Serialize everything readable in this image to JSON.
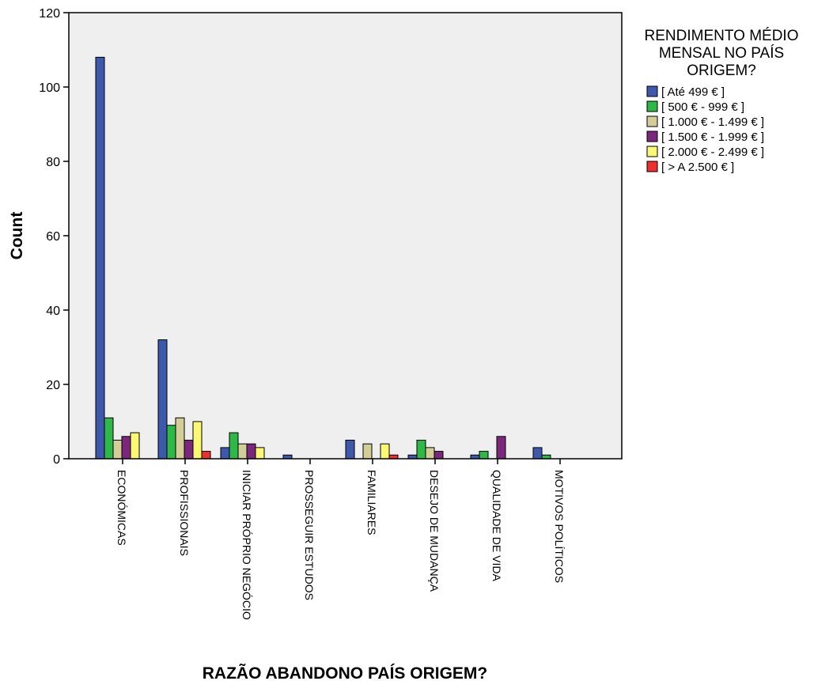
{
  "chart_data": {
    "type": "bar",
    "xlabel": "RAZÃO ABANDONO PAÍS ORIGEM?",
    "ylabel": "Count",
    "ylim": [
      0,
      120
    ],
    "yticks": [
      0,
      20,
      40,
      60,
      80,
      100,
      120
    ],
    "grid": false,
    "legend_placement": "right",
    "legend_title": "RENDIMENTO MÉDIO MENSAL NO PAÍS ORIGEM?",
    "legend_title_lines": [
      "RENDIMENTO MÉDIO",
      "MENSAL NO PAÍS",
      "ORIGEM?"
    ],
    "plot_background": "#efefef",
    "categories": [
      "ECONÓMICAS",
      "PROFISSIONAIS",
      "INICIAR PRÓPRIO NEGÓCIO",
      "PROSSEGUIR ESTUDOS",
      "FAMILIARES",
      "DESEJO DE MUDANÇA",
      "QUALIDADE DE VIDA",
      "MOTIVOS POLÍTICOS"
    ],
    "series": [
      {
        "name": "[ Até 499 € ]",
        "color": "#3e58ac",
        "values": [
          108,
          32,
          3,
          1,
          5,
          1,
          1,
          3
        ]
      },
      {
        "name": "[ 500 €  - 999 € ]",
        "color": "#2eb848",
        "values": [
          11,
          9,
          7,
          0,
          0,
          5,
          2,
          1
        ]
      },
      {
        "name": "[ 1.000 €  - 1.499 € ]",
        "color": "#d3ce97",
        "values": [
          5,
          11,
          4,
          0,
          4,
          3,
          0,
          0
        ]
      },
      {
        "name": "[ 1.500 €  - 1.999 € ]",
        "color": "#7b277b",
        "values": [
          6,
          5,
          4,
          0,
          0,
          2,
          6,
          0
        ]
      },
      {
        "name": "[ 2.000 €  -  2.499 € ]",
        "color": "#fbf873",
        "values": [
          7,
          10,
          3,
          0,
          4,
          0,
          0,
          0
        ]
      },
      {
        "name": "[ > A 2.500 € ]",
        "color": "#ed2f2f",
        "values": [
          0,
          2,
          0,
          0,
          1,
          0,
          0,
          0
        ]
      }
    ]
  }
}
